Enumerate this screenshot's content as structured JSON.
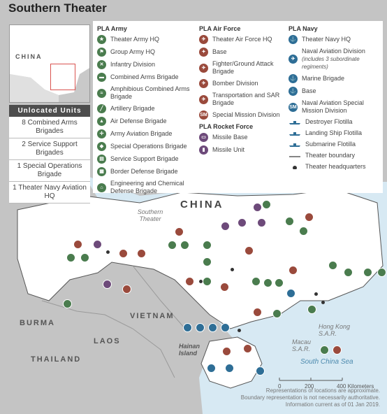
{
  "title": "Southern Theater",
  "inset": {
    "label": "CHINA"
  },
  "unlocated": {
    "header": "Unlocated Units",
    "items": [
      "8 Combined Arms Brigades",
      "2 Service Support Brigades",
      "1 Special Operations Brigade",
      "1 Theater Navy Aviation HQ"
    ]
  },
  "legend": {
    "army": {
      "header": "PLA Army",
      "items": [
        {
          "label": "Theater Army HQ",
          "icon": "star-icon",
          "glyph": "★"
        },
        {
          "label": "Group Army HQ",
          "icon": "flag-icon",
          "glyph": "⚑"
        },
        {
          "label": "Infantry Division",
          "icon": "infantry-icon",
          "glyph": "✕"
        },
        {
          "label": "Combined Arms Brigade",
          "icon": "tank-icon",
          "glyph": "▬"
        },
        {
          "label": "Amphibious Combined Arms Brigade",
          "icon": "amphibious-icon",
          "glyph": "≈"
        },
        {
          "label": "Artillery Brigade",
          "icon": "artillery-icon",
          "glyph": "╱"
        },
        {
          "label": "Air Defense Brigade",
          "icon": "air-defense-icon",
          "glyph": "▲"
        },
        {
          "label": "Army Aviation Brigade",
          "icon": "helicopter-icon",
          "glyph": "✢"
        },
        {
          "label": "Special Operations Brigade",
          "icon": "special-ops-icon",
          "glyph": "◆"
        },
        {
          "label": "Service Support Brigade",
          "icon": "support-icon",
          "glyph": "▤"
        },
        {
          "label": "Border Defense Brigade",
          "icon": "border-icon",
          "glyph": "▦"
        },
        {
          "label": "Engineering and Chemical Defense Brigade",
          "icon": "engineer-icon",
          "glyph": "⌂"
        }
      ]
    },
    "airforce": {
      "header": "PLA Air Force",
      "items": [
        {
          "label": "Theater Air Force HQ",
          "icon": "airforce-hq-icon",
          "glyph": "✈"
        },
        {
          "label": "Base",
          "icon": "airbase-icon",
          "glyph": "✦"
        },
        {
          "label": "Fighter/Ground Attack Brigade",
          "icon": "fighter-icon",
          "glyph": "✈"
        },
        {
          "label": "Bomber Division",
          "icon": "bomber-icon",
          "glyph": "✈"
        },
        {
          "label": "Transportation and SAR Brigade",
          "icon": "transport-icon",
          "glyph": "✈"
        },
        {
          "label": "Special Mission Division",
          "icon": "special-mission-icon",
          "glyph": "SM"
        }
      ]
    },
    "rocket": {
      "header": "PLA Rocket Force",
      "items": [
        {
          "label": "Missile Base",
          "icon": "missile-base-icon",
          "glyph": "▭"
        },
        {
          "label": "Missile Unit",
          "icon": "missile-unit-icon",
          "glyph": "▮"
        }
      ]
    },
    "navy": {
      "header": "PLA Navy",
      "items": [
        {
          "label": "Theater Navy HQ",
          "icon": "anchor-icon",
          "glyph": "⚓",
          "kind": "dot"
        },
        {
          "label": "Naval Aviation Division",
          "sub": "(includes 3 subordinate regiments)",
          "icon": "naval-aviation-icon",
          "glyph": "✈",
          "kind": "dot"
        },
        {
          "label": "Marine Brigade",
          "icon": "marine-icon",
          "glyph": "⚓",
          "kind": "dot"
        },
        {
          "label": "Base",
          "icon": "naval-base-icon",
          "glyph": "⚓",
          "kind": "dot"
        },
        {
          "label": "Naval Aviation Special Mission Division",
          "icon": "naval-sm-icon",
          "glyph": "SM",
          "kind": "dot"
        },
        {
          "label": "Destroyer Flotilla",
          "icon": "destroyer-icon",
          "glyph": "",
          "kind": "ship"
        },
        {
          "label": "Landing Ship Flotilla",
          "icon": "landing-ship-icon",
          "glyph": "",
          "kind": "ship"
        },
        {
          "label": "Submarine Flotilla",
          "icon": "submarine-icon",
          "glyph": "",
          "kind": "ship"
        },
        {
          "label": "Theater boundary",
          "icon": "boundary-line-icon",
          "glyph": "",
          "kind": "line"
        },
        {
          "label": "Theater headquarters",
          "icon": "hq-icon",
          "glyph": "",
          "kind": "hq"
        }
      ]
    }
  },
  "map_labels": {
    "china": "CHINA",
    "southern_theater": "Southern Theater",
    "vietnam": "VIETNAM",
    "burma": "BURMA",
    "laos": "LAOS",
    "thailand": "THAILAND",
    "hainan": "Hainan Island",
    "hongkong": "Hong Kong S.A.R.",
    "macau": "Macau S.A.R.",
    "south_china_sea": "South China Sea"
  },
  "scale": {
    "ticks": [
      "0",
      "200",
      "400 Kilometers"
    ]
  },
  "notes": [
    "Representations of locations are approximate.",
    "Boundary representation is not necessarily authoritative.",
    "Information current as of 01 Jan 2019."
  ],
  "colors": {
    "theater": "#ffffff",
    "neighbor": "#c4c4c4",
    "sea": "#d7e9f3",
    "army": "#4a7c4e",
    "air": "#9a4a3c",
    "rocket": "#6d4a7a",
    "navy": "#2e6e96"
  }
}
